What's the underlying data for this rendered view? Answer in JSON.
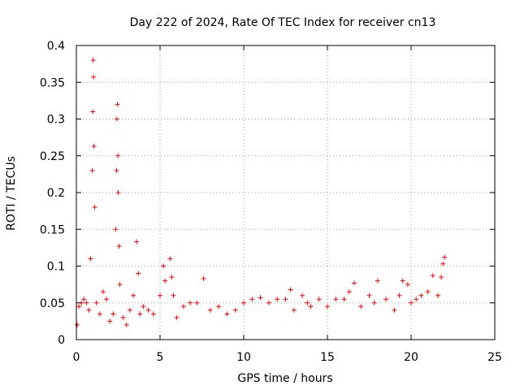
{
  "chart_data": {
    "type": "scatter",
    "title": "Day 222 of 2024, Rate Of TEC Index for receiver cn13",
    "xlabel": "GPS time / hours",
    "ylabel": "ROTI / TECUs",
    "xlim": [
      0,
      25
    ],
    "ylim": [
      0,
      0.4
    ],
    "x_ticks": [
      "0",
      "5",
      "10",
      "15",
      "20",
      "25"
    ],
    "y_ticks": [
      "0",
      "0.05",
      "0.1",
      "0.15",
      "0.2",
      "0.25",
      "0.3",
      "0.35",
      "0.4"
    ],
    "grid": true,
    "legend": "none",
    "marker": "plus",
    "color": "#ff0000",
    "series": [
      {
        "x": [
          0.05,
          0.15,
          0.3,
          0.45,
          0.6,
          0.75,
          0.85,
          0.95,
          0.98,
          1.0,
          1.02,
          1.05,
          1.1,
          1.2,
          1.4,
          1.6,
          1.8,
          2.0,
          2.2,
          2.35,
          2.4,
          2.42,
          2.45,
          2.48,
          2.5,
          2.55,
          2.6,
          2.8,
          3.0,
          3.2,
          3.4,
          3.6,
          3.7,
          3.8,
          4.0,
          4.3,
          4.6,
          5.0,
          5.2,
          5.3,
          5.6,
          5.7,
          5.8,
          6.0,
          6.4,
          6.8,
          7.2,
          7.6,
          8.0,
          8.5,
          9.0,
          9.5,
          10.0,
          10.5,
          11.0,
          11.5,
          12.0,
          12.5,
          12.8,
          13.0,
          13.5,
          13.8,
          14.0,
          14.5,
          15.0,
          15.5,
          16.0,
          16.3,
          16.6,
          17.0,
          17.5,
          17.8,
          18.0,
          18.5,
          19.0,
          19.3,
          19.5,
          19.8,
          20.0,
          20.3,
          20.6,
          21.0,
          21.3,
          21.6,
          21.8,
          21.9,
          22.0
        ],
        "y": [
          0.02,
          0.045,
          0.05,
          0.055,
          0.05,
          0.04,
          0.11,
          0.23,
          0.31,
          0.38,
          0.357,
          0.263,
          0.18,
          0.05,
          0.035,
          0.065,
          0.055,
          0.025,
          0.035,
          0.15,
          0.23,
          0.3,
          0.32,
          0.25,
          0.2,
          0.127,
          0.075,
          0.03,
          0.02,
          0.04,
          0.06,
          0.133,
          0.09,
          0.035,
          0.045,
          0.04,
          0.035,
          0.06,
          0.1,
          0.08,
          0.11,
          0.085,
          0.06,
          0.03,
          0.045,
          0.05,
          0.05,
          0.083,
          0.04,
          0.045,
          0.035,
          0.04,
          0.05,
          0.055,
          0.057,
          0.05,
          0.055,
          0.055,
          0.068,
          0.04,
          0.06,
          0.05,
          0.045,
          0.055,
          0.045,
          0.055,
          0.055,
          0.065,
          0.077,
          0.045,
          0.06,
          0.05,
          0.08,
          0.055,
          0.04,
          0.06,
          0.08,
          0.075,
          0.05,
          0.055,
          0.06,
          0.065,
          0.087,
          0.06,
          0.085,
          0.103,
          0.112
        ]
      }
    ]
  }
}
